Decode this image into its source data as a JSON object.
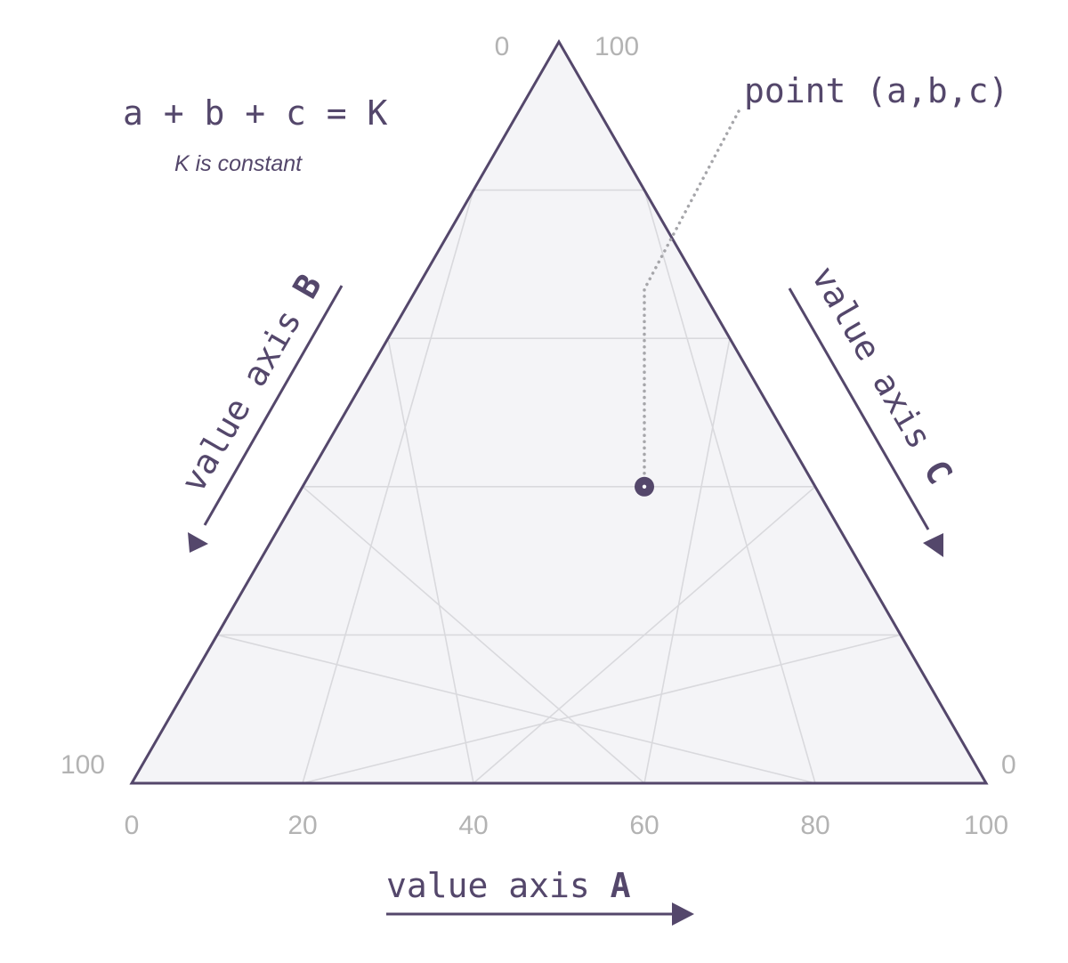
{
  "colors": {
    "primary": "#54476b",
    "fill": "#f4f4f7",
    "grid": "#d9d9dd",
    "tick": "#b3b3b3",
    "leader": "#a6a6aa"
  },
  "formula": {
    "equation": "a + b + c = K",
    "note": "K is constant"
  },
  "apex_labels": {
    "top_left": "0",
    "top_right": "100",
    "bottom_left": "100",
    "bottom_right": "0"
  },
  "axis_a": {
    "label_prefix": "value axis ",
    "label_letter": "A",
    "ticks": [
      "0",
      "20",
      "40",
      "60",
      "80",
      "100"
    ]
  },
  "axis_b": {
    "label_prefix": "value axis ",
    "label_letter": "B"
  },
  "axis_c": {
    "label_prefix": "value axis ",
    "label_letter": "C"
  },
  "point": {
    "label": "point (a,b,c)",
    "a": 40,
    "b": 20,
    "c": 40
  },
  "chart_data": {
    "type": "ternary",
    "axes": [
      "value axis A",
      "value axis B",
      "value axis C"
    ],
    "range": [
      0,
      100
    ],
    "grid_step": 20,
    "grid": true,
    "points": [
      {
        "label": "point (a,b,c)",
        "a": 40,
        "b": 20,
        "c": 40
      }
    ]
  }
}
